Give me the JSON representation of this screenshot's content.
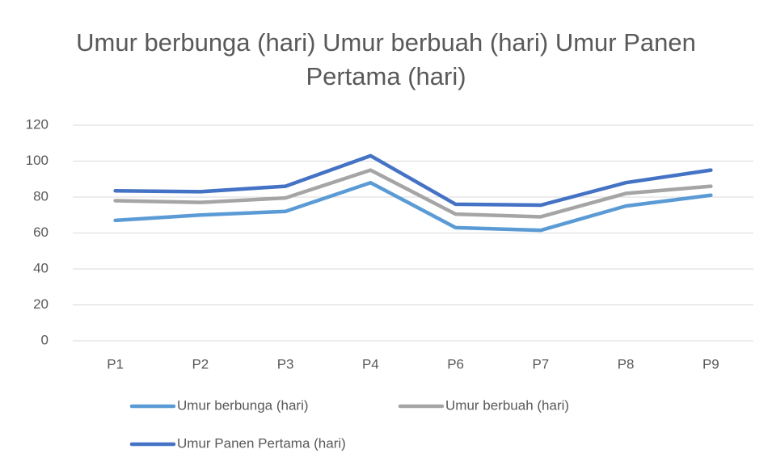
{
  "chart_data": {
    "type": "line",
    "title": "Umur berbunga (hari) Umur berbuah (hari) Umur Panen Pertama (hari)",
    "categories": [
      "P1",
      "P2",
      "P3",
      "P4",
      "P6",
      "P7",
      "P8",
      "P9"
    ],
    "series": [
      {
        "name": "Umur berbunga (hari)",
        "color": "#5b9bd5",
        "values": [
          67,
          70,
          72,
          88,
          63,
          61.5,
          75,
          81
        ]
      },
      {
        "name": "Umur berbuah (hari)",
        "color": "#a5a5a5",
        "values": [
          78,
          77,
          79.5,
          95,
          70.5,
          69,
          82,
          86
        ]
      },
      {
        "name": "Umur Panen Pertama (hari)",
        "color": "#4472c4",
        "values": [
          83.5,
          83,
          86,
          103,
          76,
          75.5,
          88,
          95
        ]
      }
    ],
    "ylim": [
      0,
      120
    ],
    "yticks": [
      0,
      20,
      40,
      60,
      80,
      100,
      120
    ],
    "grid": true,
    "legend": "bottom"
  }
}
